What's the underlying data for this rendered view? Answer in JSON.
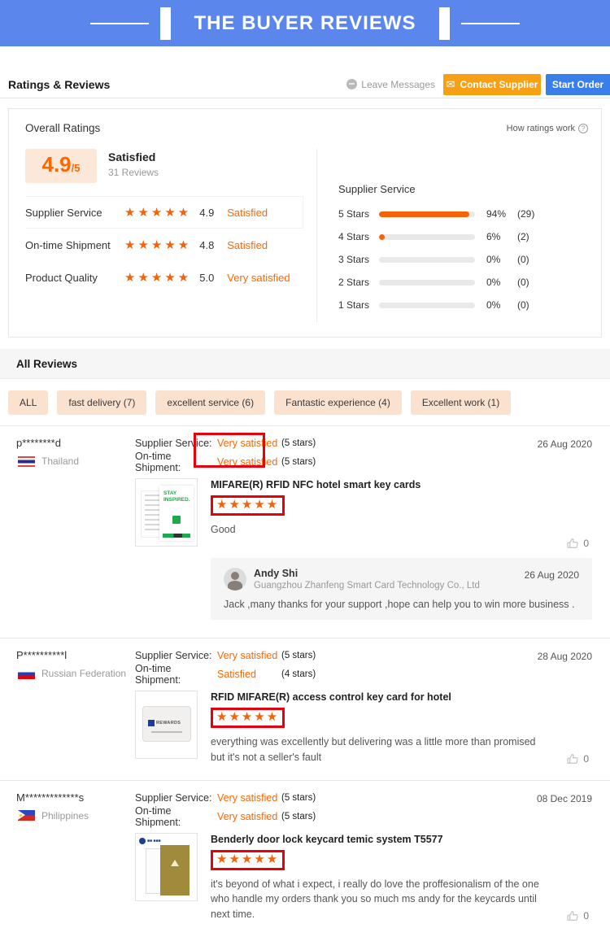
{
  "banner": {
    "title": "THE BUYER REVIEWS"
  },
  "toolbar": {
    "title": "Ratings & Reviews",
    "leave_messages": "Leave Messages",
    "contact_supplier": "Contact Supplier",
    "start_order": "Start Order"
  },
  "overall": {
    "title": "Overall Ratings",
    "how_ratings_work": "How ratings work",
    "score": "4.9",
    "score_suffix": "/5",
    "sentiment": "Satisfied",
    "reviews_count": "31 Reviews",
    "star_glyphs": "★★★★★",
    "metrics": [
      {
        "label": "Supplier Service",
        "score": "4.9",
        "sentiment": "Satisfied"
      },
      {
        "label": "On-time Shipment",
        "score": "4.8",
        "sentiment": "Satisfied"
      },
      {
        "label": "Product Quality",
        "score": "5.0",
        "sentiment": "Very satisfied"
      }
    ],
    "distribution": {
      "title": "Supplier Service",
      "rows": [
        {
          "label": "5 Stars",
          "pct": "94%",
          "count": "(29)",
          "fill": 94
        },
        {
          "label": "4 Stars",
          "pct": "6%",
          "count": "(2)",
          "fill": 6
        },
        {
          "label": "3 Stars",
          "pct": "0%",
          "count": "(0)",
          "fill": 0
        },
        {
          "label": "2 Stars",
          "pct": "0%",
          "count": "(0)",
          "fill": 0
        },
        {
          "label": "1 Stars",
          "pct": "0%",
          "count": "(0)",
          "fill": 0
        }
      ]
    }
  },
  "reviews_section": {
    "title": "All Reviews",
    "filters": [
      {
        "label": "ALL"
      },
      {
        "label": "fast delivery (7)"
      },
      {
        "label": "excellent service (6)"
      },
      {
        "label": "Fantastic experience (4)"
      },
      {
        "label": "Excellent work (1)"
      }
    ]
  },
  "review_labels": {
    "supplier_service": "Supplier Service:",
    "on_time_shipment": "On-time Shipment:"
  },
  "reviews": [
    {
      "user": "p********d",
      "country": "Thailand",
      "date": "26 Aug 2020",
      "supplier_service": "Very satisfied",
      "supplier_service_stars": "(5 stars)",
      "on_time": "Very satisfied",
      "on_time_stars": "(5 stars)",
      "product": "MIFARE(R) RFID NFC hotel smart key cards",
      "stars": "★★★★★",
      "text": "Good",
      "likes": "0",
      "thumb_text_1": "STAY",
      "thumb_text_2": "INSPIRED.",
      "reply": {
        "name": "Andy Shi",
        "company": "Guangzhou Zhanfeng Smart Card Technology Co., Ltd",
        "date": "26 Aug 2020",
        "text": "Jack ,many thanks for your support ,hope can help you to win more business ."
      }
    },
    {
      "user": "P**********l",
      "country": "Russian Federation",
      "date": "28 Aug 2020",
      "supplier_service": "Very satisfied",
      "supplier_service_stars": "(5 stars)",
      "on_time": "Satisfied",
      "on_time_stars": "(4 stars)",
      "product": "RFID MIFARE(R) access control key card for hotel",
      "stars": "★★★★★",
      "text": "everything was excellently but delivering was a little more than promised but it's not a seller's fault",
      "likes": "0",
      "thumb_text": "REWARDS"
    },
    {
      "user": "M*************s",
      "country": "Philippines",
      "date": "08 Dec 2019",
      "supplier_service": "Very satisfied",
      "supplier_service_stars": "(5 stars)",
      "on_time": "Very satisfied",
      "on_time_stars": "(5 stars)",
      "product": "Benderly door lock keycard temic system T5577",
      "stars": "★★★★★",
      "text": "it's beyond of what i expect, i really do love the proffesionalism  of the one who handle my orders thank you so much ms andy for the keycards until next time.",
      "likes": "0"
    }
  ]
}
